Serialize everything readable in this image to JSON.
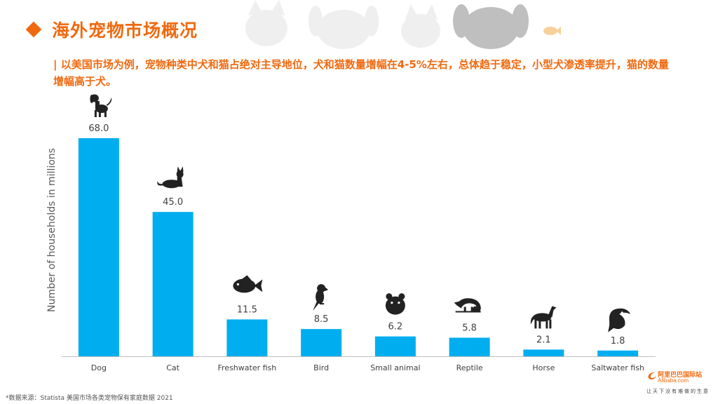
{
  "header": {
    "title": "海外宠物市场概况",
    "subtitle": "| 以美国市场为例，宠物种类中犬和猫占绝对主导地位，犬和猫数量增幅在4-5%左右，总体趋于稳定，小型犬渗透率提升，猫的数量增幅高于犬。"
  },
  "colors": {
    "accent": "#F0690F",
    "bar": "#00AEEF",
    "icon": "#222222"
  },
  "chart_data": {
    "type": "bar",
    "categories": [
      "Dog",
      "Cat",
      "Freshwater fish",
      "Bird",
      "Small animal",
      "Reptile",
      "Horse",
      "Saltwater fish"
    ],
    "values": [
      68.0,
      45.0,
      11.5,
      8.5,
      6.2,
      5.8,
      2.1,
      1.8
    ],
    "value_labels": [
      "68.0",
      "45.0",
      "11.5",
      "8.5",
      "6.2",
      "5.8",
      "2.1",
      "1.8"
    ],
    "icons": [
      "dog-icon",
      "cat-icon",
      "fish-icon",
      "parrot-icon",
      "hamster-icon",
      "chameleon-icon",
      "horse-icon",
      "saltwater-fish-icon"
    ],
    "title": "",
    "xlabel": "",
    "ylabel": "Number of households in millions",
    "ylim": [
      0,
      68
    ],
    "grid": false,
    "legend": "none"
  },
  "footer": {
    "source": "*数据来源：Statista 美国市场各类宠物保有家庭数据 2021",
    "logo_name": "阿里巴巴国际站",
    "logo_sub": "Alibaba.com",
    "logo_slogan": "让天下没有难做的生意"
  }
}
